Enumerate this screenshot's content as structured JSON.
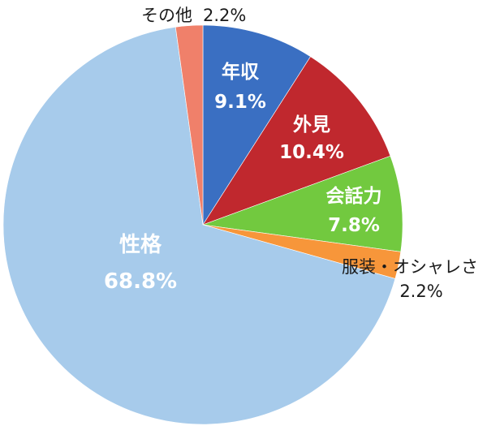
{
  "chart_data": {
    "type": "pie",
    "title": "",
    "slices": [
      {
        "name": "年収",
        "value": 9.1,
        "value_label": "9.1%",
        "color": "#3a6fc2"
      },
      {
        "name": "外見",
        "value": 10.4,
        "value_label": "10.4%",
        "color": "#c0282e"
      },
      {
        "name": "会話力",
        "value": 7.8,
        "value_label": "7.8%",
        "color": "#72c93f"
      },
      {
        "name": "服装・オシャレさ",
        "value": 2.2,
        "value_label": "2.2%",
        "color": "#f7963a"
      },
      {
        "name": "性格",
        "value": 68.8,
        "value_label": "68.8%",
        "color": "#a7cbeb"
      },
      {
        "name": "その他",
        "value": 2.2,
        "value_label": "2.2%",
        "color": "#f0806a"
      }
    ],
    "start_direction": "top",
    "rotation": "clockwise"
  }
}
